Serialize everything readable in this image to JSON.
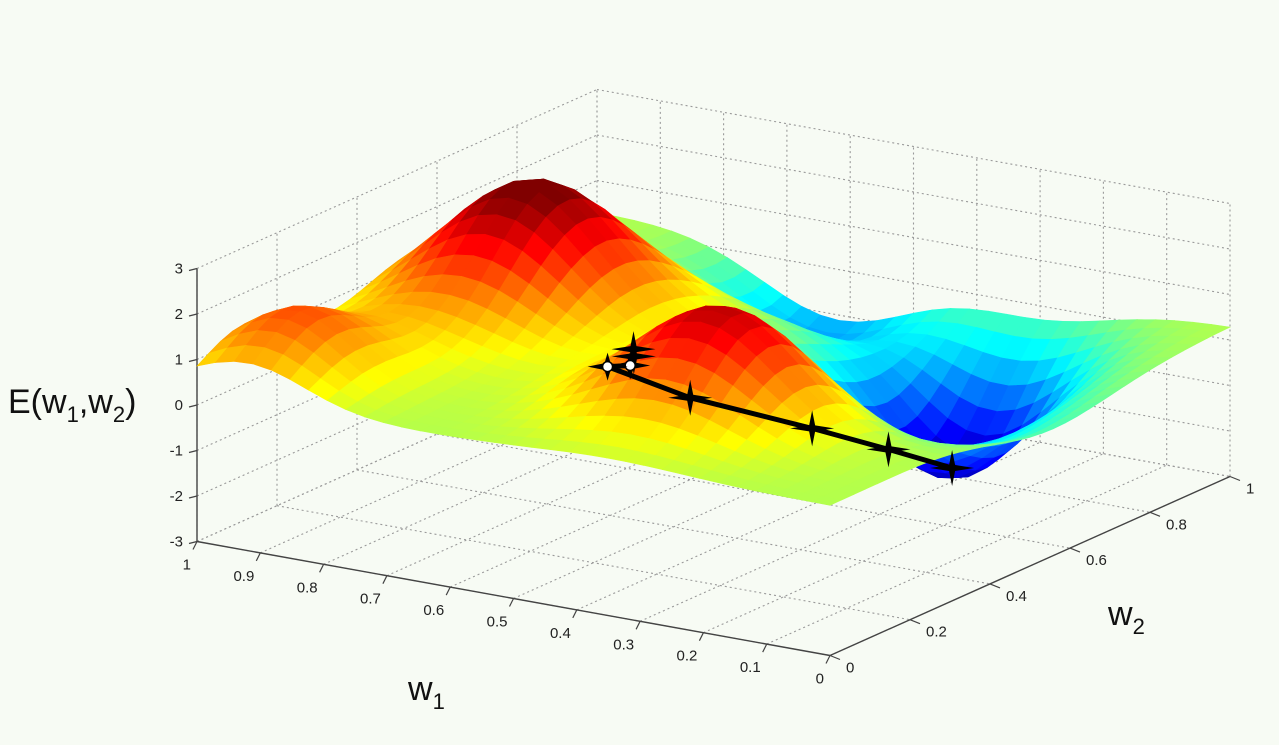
{
  "chart_data": {
    "type": "surface",
    "zlabel": {
      "base": "E(w",
      "sub1": "1",
      "mid": ",w",
      "sub2": "2",
      "end": ")"
    },
    "xlabel": {
      "base": "w",
      "sub": "1"
    },
    "ylabel": {
      "base": "w",
      "sub": "2"
    },
    "w1_range": [
      0,
      1
    ],
    "w2_range": [
      0,
      1
    ],
    "z_range": [
      -3,
      3
    ],
    "w1_ticks": [
      "0",
      "0.1",
      "0.2",
      "0.3",
      "0.4",
      "0.5",
      "0.6",
      "0.7",
      "0.8",
      "0.9",
      "1"
    ],
    "w2_ticks": [
      "0",
      "0.2",
      "0.4",
      "0.6",
      "0.8",
      "1"
    ],
    "z_ticks": [
      "-3",
      "-2",
      "-1",
      "0",
      "1",
      "2",
      "3"
    ],
    "grid": true,
    "colormap": "jet",
    "descent_path": [
      {
        "w1": 0.5,
        "w2": 0.3,
        "E": 1.3,
        "marker": "star"
      },
      {
        "w1": 0.55,
        "w2": 0.38,
        "E": 0.7,
        "marker": "star"
      },
      {
        "w1": 0.6,
        "w2": 0.45,
        "E": 0.1,
        "marker": "circle"
      },
      {
        "w1": 0.68,
        "w2": 0.52,
        "E": -0.4,
        "marker": "circle"
      },
      {
        "w1": 0.6,
        "w2": 0.6,
        "E": -1.2,
        "marker": "star"
      },
      {
        "w1": 0.42,
        "w2": 0.62,
        "E": -1.5,
        "marker": "star"
      },
      {
        "w1": 0.35,
        "w2": 0.7,
        "E": -2.1,
        "marker": "star"
      },
      {
        "w1": 0.3,
        "w2": 0.78,
        "E": -2.7,
        "marker": "star"
      }
    ]
  }
}
